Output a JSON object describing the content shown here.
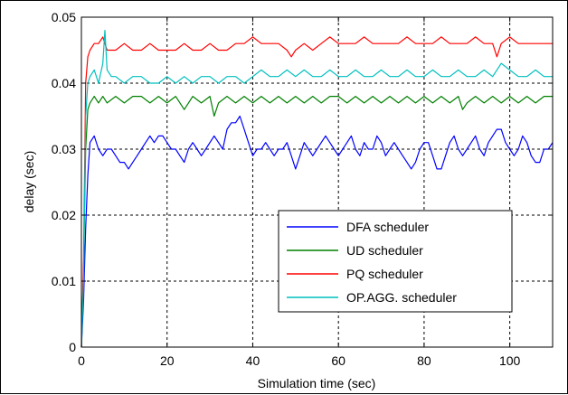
{
  "chart_data": {
    "type": "line",
    "title": "",
    "xlabel": "Simulation time (sec)",
    "ylabel": "delay (sec)",
    "xlim": [
      0,
      110
    ],
    "ylim": [
      0,
      0.05
    ],
    "xticks": [
      0,
      20,
      40,
      60,
      80,
      100
    ],
    "xtick_labels": [
      "0",
      "20",
      "40",
      "60",
      "80",
      "100"
    ],
    "yticks": [
      0,
      0.01,
      0.02,
      0.03,
      0.04,
      0.05
    ],
    "ytick_labels": [
      "0",
      "0.01",
      "0.02",
      "0.03",
      "0.04",
      "0.05"
    ],
    "grid": true,
    "legend_position": "bottom-right",
    "series": [
      {
        "name": "DFA scheduler",
        "color": "#0000ff",
        "x": [
          0,
          0.5,
          1,
          1.5,
          2,
          3,
          4,
          5,
          6,
          7,
          8,
          9,
          10,
          11,
          12,
          13,
          14,
          15,
          16,
          17,
          18,
          19,
          20,
          21,
          22,
          23,
          24,
          25,
          26,
          27,
          28,
          29,
          30,
          31,
          32,
          33,
          34,
          35,
          36,
          37,
          38,
          39,
          40,
          41,
          42,
          43,
          44,
          45,
          46,
          47,
          48,
          49,
          50,
          51,
          52,
          53,
          54,
          55,
          56,
          57,
          58,
          59,
          60,
          61,
          62,
          63,
          64,
          65,
          66,
          67,
          68,
          69,
          70,
          71,
          72,
          73,
          74,
          75,
          76,
          77,
          78,
          79,
          80,
          81,
          82,
          83,
          84,
          85,
          86,
          87,
          88,
          89,
          90,
          91,
          92,
          93,
          94,
          95,
          96,
          97,
          98,
          99,
          100,
          101,
          102,
          103,
          104,
          105,
          106,
          107,
          108,
          109,
          110
        ],
        "y": [
          0,
          0.007,
          0.018,
          0.026,
          0.031,
          0.032,
          0.03,
          0.029,
          0.03,
          0.03,
          0.029,
          0.028,
          0.028,
          0.027,
          0.028,
          0.029,
          0.03,
          0.031,
          0.032,
          0.031,
          0.032,
          0.032,
          0.031,
          0.03,
          0.03,
          0.029,
          0.028,
          0.03,
          0.031,
          0.03,
          0.029,
          0.03,
          0.031,
          0.032,
          0.031,
          0.03,
          0.033,
          0.034,
          0.034,
          0.035,
          0.033,
          0.031,
          0.029,
          0.03,
          0.03,
          0.031,
          0.03,
          0.029,
          0.03,
          0.03,
          0.031,
          0.029,
          0.027,
          0.029,
          0.031,
          0.03,
          0.029,
          0.03,
          0.031,
          0.032,
          0.031,
          0.03,
          0.029,
          0.03,
          0.031,
          0.032,
          0.03,
          0.029,
          0.031,
          0.03,
          0.03,
          0.032,
          0.031,
          0.029,
          0.03,
          0.031,
          0.03,
          0.029,
          0.028,
          0.027,
          0.028,
          0.03,
          0.031,
          0.031,
          0.029,
          0.027,
          0.027,
          0.029,
          0.031,
          0.032,
          0.03,
          0.029,
          0.03,
          0.031,
          0.032,
          0.03,
          0.029,
          0.031,
          0.032,
          0.033,
          0.033,
          0.031,
          0.03,
          0.029,
          0.03,
          0.032,
          0.031,
          0.029,
          0.028,
          0.028,
          0.03,
          0.03,
          0.031
        ]
      },
      {
        "name": "UD scheduler",
        "color": "#008000",
        "x": [
          0,
          0.5,
          1,
          1.5,
          2,
          3,
          4,
          5,
          6,
          8,
          10,
          12,
          14,
          16,
          18,
          20,
          22,
          24,
          25,
          26,
          28,
          30,
          31,
          32,
          34,
          36,
          38,
          40,
          42,
          44,
          46,
          48,
          50,
          52,
          54,
          56,
          58,
          60,
          62,
          64,
          66,
          68,
          70,
          72,
          74,
          76,
          78,
          80,
          82,
          84,
          86,
          88,
          89,
          90,
          92,
          94,
          96,
          98,
          100,
          102,
          104,
          106,
          108,
          110
        ],
        "y": [
          0,
          0.012,
          0.03,
          0.036,
          0.037,
          0.038,
          0.037,
          0.038,
          0.037,
          0.038,
          0.037,
          0.038,
          0.038,
          0.037,
          0.038,
          0.037,
          0.038,
          0.036,
          0.037,
          0.038,
          0.037,
          0.038,
          0.035,
          0.037,
          0.038,
          0.037,
          0.038,
          0.037,
          0.038,
          0.037,
          0.038,
          0.037,
          0.038,
          0.037,
          0.038,
          0.037,
          0.038,
          0.038,
          0.037,
          0.038,
          0.037,
          0.038,
          0.037,
          0.038,
          0.037,
          0.038,
          0.037,
          0.038,
          0.037,
          0.038,
          0.037,
          0.038,
          0.036,
          0.037,
          0.038,
          0.037,
          0.038,
          0.037,
          0.038,
          0.037,
          0.038,
          0.037,
          0.038,
          0.038
        ]
      },
      {
        "name": "PQ scheduler",
        "color": "#ff0000",
        "x": [
          0,
          0.5,
          1,
          1.5,
          2,
          3,
          4,
          5,
          6,
          8,
          10,
          12,
          14,
          16,
          18,
          20,
          22,
          24,
          26,
          28,
          30,
          32,
          34,
          36,
          38,
          40,
          42,
          44,
          46,
          48,
          49,
          50,
          52,
          54,
          56,
          58,
          60,
          62,
          64,
          66,
          68,
          70,
          72,
          74,
          76,
          78,
          80,
          82,
          84,
          86,
          88,
          90,
          92,
          94,
          96,
          97,
          98,
          100,
          102,
          104,
          106,
          108,
          110
        ],
        "y": [
          0,
          0.013,
          0.04,
          0.044,
          0.045,
          0.046,
          0.046,
          0.047,
          0.045,
          0.045,
          0.046,
          0.045,
          0.045,
          0.046,
          0.045,
          0.045,
          0.045,
          0.046,
          0.045,
          0.045,
          0.046,
          0.045,
          0.045,
          0.046,
          0.046,
          0.047,
          0.046,
          0.046,
          0.046,
          0.045,
          0.044,
          0.045,
          0.046,
          0.045,
          0.046,
          0.047,
          0.046,
          0.046,
          0.046,
          0.047,
          0.046,
          0.046,
          0.046,
          0.046,
          0.047,
          0.046,
          0.046,
          0.046,
          0.047,
          0.046,
          0.046,
          0.046,
          0.047,
          0.046,
          0.046,
          0.044,
          0.046,
          0.047,
          0.046,
          0.046,
          0.046,
          0.046,
          0.046
        ]
      },
      {
        "name": "OP.AGG. scheduler",
        "color": "#00bfbf",
        "x": [
          0,
          0.5,
          1,
          1.5,
          2,
          3,
          4,
          5,
          5.5,
          6,
          7,
          8,
          10,
          12,
          14,
          16,
          18,
          20,
          22,
          24,
          26,
          28,
          30,
          32,
          34,
          36,
          38,
          40,
          42,
          44,
          46,
          48,
          50,
          52,
          54,
          56,
          58,
          60,
          62,
          64,
          66,
          68,
          70,
          72,
          74,
          76,
          78,
          80,
          82,
          84,
          86,
          88,
          90,
          92,
          94,
          96,
          98,
          100,
          102,
          104,
          106,
          108,
          110
        ],
        "y": [
          0,
          0.01,
          0.035,
          0.04,
          0.041,
          0.042,
          0.04,
          0.043,
          0.048,
          0.042,
          0.041,
          0.041,
          0.04,
          0.041,
          0.041,
          0.04,
          0.04,
          0.041,
          0.04,
          0.041,
          0.04,
          0.041,
          0.041,
          0.04,
          0.041,
          0.041,
          0.04,
          0.041,
          0.042,
          0.041,
          0.041,
          0.042,
          0.041,
          0.042,
          0.041,
          0.041,
          0.042,
          0.041,
          0.041,
          0.042,
          0.041,
          0.041,
          0.042,
          0.041,
          0.041,
          0.042,
          0.041,
          0.041,
          0.042,
          0.041,
          0.041,
          0.042,
          0.041,
          0.041,
          0.042,
          0.041,
          0.043,
          0.042,
          0.041,
          0.041,
          0.042,
          0.041,
          0.041
        ]
      }
    ]
  }
}
